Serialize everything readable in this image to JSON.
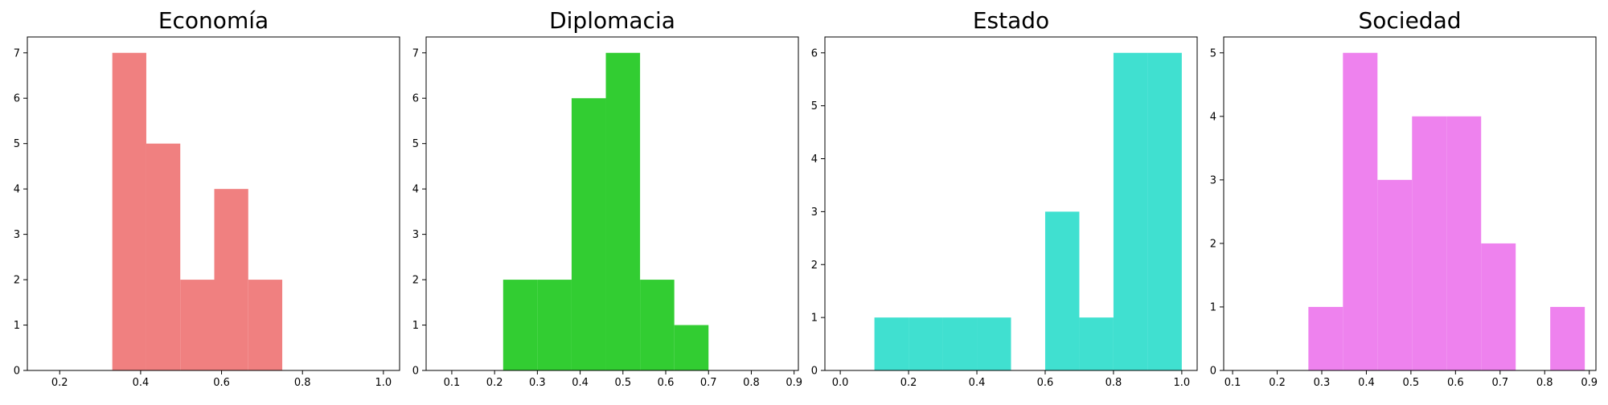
{
  "chart_data": [
    {
      "type": "histogram",
      "title": "Economía",
      "color": "#F08080",
      "bins": [
        {
          "x0": 0.33,
          "x1": 0.414,
          "count": 7
        },
        {
          "x0": 0.414,
          "x1": 0.498,
          "count": 5
        },
        {
          "x0": 0.498,
          "x1": 0.582,
          "count": 2
        },
        {
          "x0": 0.582,
          "x1": 0.666,
          "count": 4
        },
        {
          "x0": 0.666,
          "x1": 0.75,
          "count": 2
        }
      ],
      "xlim": [
        0.12,
        1.04
      ],
      "ylim": [
        0,
        7.35
      ],
      "xticks": [
        0.2,
        0.4,
        0.6,
        0.8,
        1.0
      ],
      "xtick_labels": [
        "0.2",
        "0.4",
        "0.6",
        "0.8",
        "1.0"
      ],
      "yticks": [
        0,
        1,
        2,
        3,
        4,
        5,
        6,
        7
      ],
      "ytick_labels": [
        "0",
        "1",
        "2",
        "3",
        "4",
        "5",
        "6",
        "7"
      ],
      "grid": false
    },
    {
      "type": "histogram",
      "title": "Diplomacia",
      "color": "#32CD32",
      "bins": [
        {
          "x0": 0.22,
          "x1": 0.3,
          "count": 2
        },
        {
          "x0": 0.3,
          "x1": 0.38,
          "count": 2
        },
        {
          "x0": 0.38,
          "x1": 0.46,
          "count": 6
        },
        {
          "x0": 0.46,
          "x1": 0.54,
          "count": 7
        },
        {
          "x0": 0.54,
          "x1": 0.62,
          "count": 2
        },
        {
          "x0": 0.62,
          "x1": 0.7,
          "count": 1
        }
      ],
      "xlim": [
        0.04,
        0.91
      ],
      "ylim": [
        0,
        7.35
      ],
      "xticks": [
        0.1,
        0.2,
        0.3,
        0.4,
        0.5,
        0.6,
        0.7,
        0.8,
        0.9
      ],
      "xtick_labels": [
        "0.1",
        "0.2",
        "0.3",
        "0.4",
        "0.5",
        "0.6",
        "0.7",
        "0.8",
        "0.9"
      ],
      "yticks": [
        0,
        1,
        2,
        3,
        4,
        5,
        6,
        7
      ],
      "ytick_labels": [
        "0",
        "1",
        "2",
        "3",
        "4",
        "5",
        "6",
        "7"
      ],
      "grid": false
    },
    {
      "type": "histogram",
      "title": "Estado",
      "color": "#40E0D0",
      "bins": [
        {
          "x0": 0.1,
          "x1": 0.2,
          "count": 1
        },
        {
          "x0": 0.2,
          "x1": 0.3,
          "count": 1
        },
        {
          "x0": 0.3,
          "x1": 0.4,
          "count": 1
        },
        {
          "x0": 0.4,
          "x1": 0.5,
          "count": 1
        },
        {
          "x0": 0.5,
          "x1": 0.6,
          "count": 0
        },
        {
          "x0": 0.6,
          "x1": 0.7,
          "count": 3
        },
        {
          "x0": 0.7,
          "x1": 0.8,
          "count": 1
        },
        {
          "x0": 0.8,
          "x1": 0.9,
          "count": 6
        },
        {
          "x0": 0.9,
          "x1": 1.0,
          "count": 6
        }
      ],
      "xlim": [
        -0.045,
        1.045
      ],
      "ylim": [
        0,
        6.3
      ],
      "xticks": [
        0.0,
        0.2,
        0.4,
        0.6,
        0.8,
        1.0
      ],
      "xtick_labels": [
        "0.0",
        "0.2",
        "0.4",
        "0.6",
        "0.8",
        "1.0"
      ],
      "yticks": [
        0,
        1,
        2,
        3,
        4,
        5,
        6
      ],
      "ytick_labels": [
        "0",
        "1",
        "2",
        "3",
        "4",
        "5",
        "6"
      ],
      "grid": false
    },
    {
      "type": "histogram",
      "title": "Sociedad",
      "color": "#EE82EE",
      "bins": [
        {
          "x0": 0.27,
          "x1": 0.3475,
          "count": 1
        },
        {
          "x0": 0.3475,
          "x1": 0.425,
          "count": 5
        },
        {
          "x0": 0.425,
          "x1": 0.5025,
          "count": 3
        },
        {
          "x0": 0.5025,
          "x1": 0.58,
          "count": 4
        },
        {
          "x0": 0.58,
          "x1": 0.6575,
          "count": 4
        },
        {
          "x0": 0.6575,
          "x1": 0.735,
          "count": 2
        },
        {
          "x0": 0.735,
          "x1": 0.8125,
          "count": 0
        },
        {
          "x0": 0.8125,
          "x1": 0.89,
          "count": 1
        }
      ],
      "xlim": [
        0.08,
        0.915
      ],
      "ylim": [
        0,
        5.25
      ],
      "xticks": [
        0.1,
        0.2,
        0.3,
        0.4,
        0.5,
        0.6,
        0.7,
        0.8,
        0.9
      ],
      "xtick_labels": [
        "0.1",
        "0.2",
        "0.3",
        "0.4",
        "0.5",
        "0.6",
        "0.7",
        "0.8",
        "0.9"
      ],
      "yticks": [
        0,
        1,
        2,
        3,
        4,
        5
      ],
      "ytick_labels": [
        "0",
        "1",
        "2",
        "3",
        "4",
        "5"
      ],
      "grid": false
    }
  ]
}
